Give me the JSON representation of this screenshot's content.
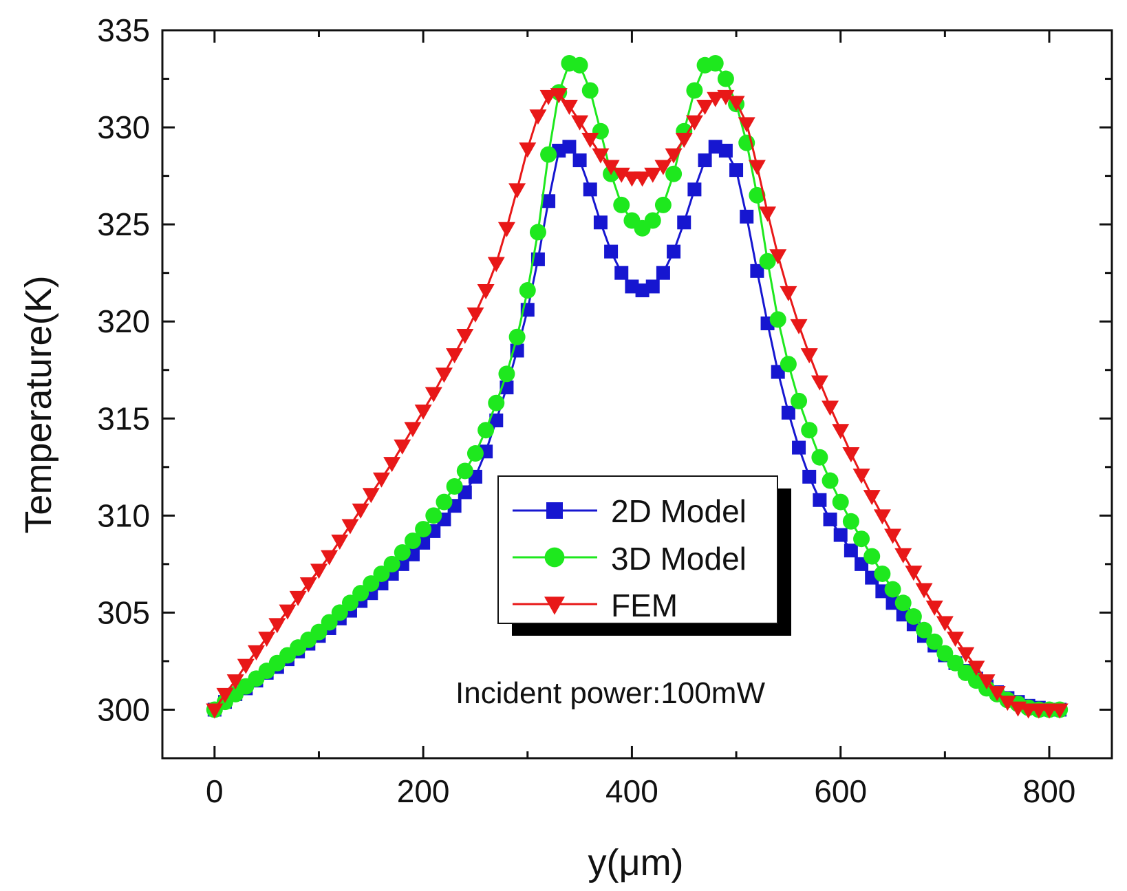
{
  "chart_data": {
    "type": "line",
    "xlabel": "y(μm)",
    "ylabel": "Temperature(K)",
    "xlim": [
      -50,
      860
    ],
    "ylim": [
      297.5,
      335
    ],
    "xticks": [
      0,
      200,
      400,
      600,
      800
    ],
    "yticks": [
      300,
      305,
      310,
      315,
      320,
      325,
      330,
      335
    ],
    "grid": false,
    "legend_position": "center",
    "annotation": "Incident power:100mW",
    "x": [
      0,
      10,
      20,
      30,
      40,
      50,
      60,
      70,
      80,
      90,
      100,
      110,
      120,
      130,
      140,
      150,
      160,
      170,
      180,
      190,
      200,
      210,
      220,
      230,
      240,
      250,
      260,
      270,
      280,
      290,
      300,
      310,
      320,
      330,
      340,
      350,
      360,
      370,
      380,
      390,
      400,
      410,
      420,
      430,
      440,
      450,
      460,
      470,
      480,
      490,
      500,
      510,
      520,
      530,
      540,
      550,
      560,
      570,
      580,
      590,
      600,
      610,
      620,
      630,
      640,
      650,
      660,
      670,
      680,
      690,
      700,
      710,
      720,
      730,
      740,
      750,
      760,
      770,
      780,
      790,
      800,
      810
    ],
    "series": [
      {
        "name": "2D Model",
        "color": "#1616d0",
        "marker": "square",
        "values": [
          300.0,
          300.4,
          300.8,
          301.1,
          301.5,
          301.9,
          302.2,
          302.6,
          303.0,
          303.4,
          303.8,
          304.2,
          304.7,
          305.1,
          305.6,
          306.0,
          306.5,
          307.0,
          307.5,
          308.0,
          308.6,
          309.2,
          309.8,
          310.5,
          311.2,
          312.0,
          313.3,
          314.9,
          316.6,
          318.5,
          320.6,
          323.2,
          326.2,
          328.8,
          329.0,
          328.3,
          326.8,
          325.1,
          323.6,
          322.5,
          321.8,
          321.6,
          321.8,
          322.5,
          323.6,
          325.1,
          326.8,
          328.3,
          329.0,
          328.8,
          327.8,
          325.4,
          322.6,
          319.9,
          317.4,
          315.3,
          313.5,
          312.0,
          310.8,
          309.8,
          309.0,
          308.2,
          307.5,
          306.8,
          306.1,
          305.5,
          304.9,
          304.4,
          303.8,
          303.3,
          302.8,
          302.4,
          302.0,
          301.6,
          301.2,
          300.9,
          300.6,
          300.4,
          300.2,
          300.1,
          300.0,
          300.0
        ]
      },
      {
        "name": "3D Model",
        "color": "#1ee81e",
        "marker": "circle",
        "values": [
          300.0,
          300.4,
          300.8,
          301.2,
          301.6,
          302.0,
          302.4,
          302.8,
          303.2,
          303.6,
          304.0,
          304.5,
          305.0,
          305.5,
          306.0,
          306.5,
          307.0,
          307.5,
          308.1,
          308.7,
          309.3,
          310.0,
          310.7,
          311.5,
          312.3,
          313.2,
          314.4,
          315.8,
          317.3,
          319.2,
          321.6,
          324.6,
          328.6,
          331.8,
          333.3,
          333.2,
          331.9,
          329.8,
          327.6,
          326.0,
          325.2,
          324.8,
          325.2,
          326.0,
          327.6,
          329.8,
          331.9,
          333.2,
          333.3,
          332.5,
          331.2,
          329.2,
          326.5,
          323.1,
          320.1,
          317.8,
          315.9,
          314.4,
          313.0,
          311.8,
          310.7,
          309.7,
          308.8,
          307.9,
          307.0,
          306.2,
          305.5,
          304.8,
          304.1,
          303.5,
          302.9,
          302.4,
          301.9,
          301.5,
          301.1,
          300.8,
          300.5,
          300.3,
          300.1,
          300.0,
          300.0,
          300.0
        ]
      },
      {
        "name": "FEM",
        "color": "#e81818",
        "marker": "triangle-down",
        "values": [
          300.0,
          300.8,
          301.5,
          302.3,
          303.0,
          303.7,
          304.4,
          305.1,
          305.8,
          306.5,
          307.2,
          307.9,
          308.7,
          309.5,
          310.3,
          311.1,
          311.9,
          312.7,
          313.6,
          314.5,
          315.4,
          316.3,
          317.3,
          318.3,
          319.3,
          320.4,
          321.6,
          323.0,
          324.8,
          326.8,
          328.9,
          330.6,
          331.6,
          331.7,
          331.1,
          330.3,
          329.4,
          328.6,
          328.0,
          327.6,
          327.4,
          327.4,
          327.6,
          328.0,
          328.6,
          329.4,
          330.3,
          331.1,
          331.5,
          331.6,
          331.3,
          330.2,
          328.0,
          325.6,
          323.4,
          321.5,
          319.8,
          318.3,
          316.9,
          315.6,
          314.4,
          313.2,
          312.1,
          311.0,
          310.0,
          309.0,
          308.0,
          307.1,
          306.2,
          305.3,
          304.5,
          303.7,
          302.9,
          302.2,
          301.5,
          300.9,
          300.4,
          300.1,
          300.0,
          300.0,
          300.0,
          300.0
        ]
      }
    ]
  }
}
